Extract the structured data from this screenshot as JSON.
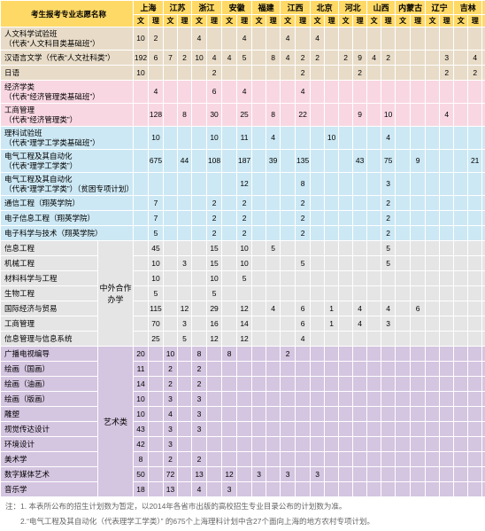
{
  "title_col": "考生报考专业志愿名称",
  "provinces": [
    "上海",
    "江苏",
    "浙江",
    "安徽",
    "福建",
    "江西",
    "北京",
    "河北",
    "山西",
    "内蒙古",
    "辽宁",
    "吉林",
    "黑龙江"
  ],
  "sub_wen": "文",
  "sub_li": "理",
  "categories": {
    "coop": "中外合作\n办学",
    "art": "艺术类"
  },
  "sections": [
    {
      "color": "tan",
      "rows": [
        {
          "name": "人文科学试验班\n（代表“人文科目类基础班”）",
          "tall": true,
          "cells": {
            "0": "10",
            "1": "2",
            "4": "4",
            "7": "4",
            "10": "4",
            "12": "4"
          }
        },
        {
          "name": "汉语言文学（代表“人文社科类”）",
          "cells": {
            "0": "192",
            "1": "6",
            "2": "7",
            "3": "2",
            "4": "10",
            "5": "4",
            "6": "4",
            "7": "5",
            "9": "8",
            "10": "4",
            "11": "2",
            "12": "2",
            "14": "2",
            "15": "9",
            "16": "4",
            "17": "2",
            "21": "3",
            "23": "4"
          }
        },
        {
          "name": "日语",
          "cells": {
            "0": "10",
            "5": "2",
            "11": "2",
            "15": "2",
            "21": "2",
            "23": "2"
          }
        }
      ]
    },
    {
      "color": "pink",
      "rows": [
        {
          "name": "经济学类\n（代表“经济管理类基础班”）",
          "tall": true,
          "cells": {
            "1": "4",
            "5": "6",
            "7": "4",
            "11": "4"
          }
        },
        {
          "name": "工商管理\n（代表“经济管理类”）",
          "tall": true,
          "cells": {
            "1": "128",
            "3": "8",
            "5": "30",
            "7": "25",
            "9": "8",
            "11": "22",
            "15": "9",
            "17": "10",
            "21": "4",
            "25": "5"
          }
        }
      ]
    },
    {
      "color": "blue",
      "rows": [
        {
          "name": "理科试验班\n（代表“理学工学类基础班”）",
          "tall": true,
          "cells": {
            "1": "10",
            "5": "10",
            "7": "11",
            "9": "4",
            "13": "10",
            "17": "4"
          }
        },
        {
          "name": "电气工程及其自动化\n（代表“理学工学类”）",
          "tall": true,
          "cells": {
            "1": "675",
            "3": "44",
            "5": "108",
            "7": "187",
            "9": "39",
            "11": "135",
            "15": "43",
            "17": "75",
            "19": "9",
            "23": "21",
            "25": "25"
          }
        },
        {
          "name": "电气工程及其自动化\n（代表“理学工学类”）（贫困专项计划）",
          "tall": true,
          "cells": {
            "7": "12",
            "11": "8",
            "17": "3"
          }
        },
        {
          "name": "通信工程（翔英学院）",
          "cells": {
            "1": "7",
            "5": "2",
            "7": "2",
            "11": "2",
            "17": "2"
          }
        },
        {
          "name": "电子信息工程（翔英学院）",
          "cells": {
            "1": "7",
            "5": "2",
            "7": "2",
            "11": "2",
            "17": "2"
          }
        },
        {
          "name": "电子科学与技术（翔英学院）",
          "cells": {
            "1": "5",
            "5": "2",
            "7": "2",
            "11": "2",
            "17": "2"
          }
        }
      ]
    },
    {
      "color": "gray",
      "cat": "coop",
      "rows": [
        {
          "name": "信息工程",
          "cells": {
            "1": "45",
            "5": "15",
            "7": "10",
            "9": "5",
            "17": "5"
          }
        },
        {
          "name": "机械工程",
          "cells": {
            "1": "10",
            "3": "3",
            "5": "15",
            "7": "10",
            "11": "5",
            "17": "5"
          }
        },
        {
          "name": "材料科学与工程",
          "cells": {
            "1": "10",
            "5": "10",
            "7": "5"
          }
        },
        {
          "name": "生物工程",
          "cells": {
            "1": "5",
            "5": "5"
          }
        },
        {
          "name": "国际经济与贸易",
          "cells": {
            "1": "115",
            "3": "12",
            "5": "29",
            "7": "12",
            "9": "4",
            "11": "6",
            "13": "1",
            "15": "4",
            "17": "4",
            "19": "6"
          }
        },
        {
          "name": "工商管理",
          "cells": {
            "1": "70",
            "3": "3",
            "5": "16",
            "7": "14",
            "11": "6",
            "13": "1",
            "15": "4",
            "17": "3"
          }
        },
        {
          "name": "信息管理与信息系统",
          "cells": {
            "1": "25",
            "3": "5",
            "5": "12",
            "7": "12",
            "11": "4"
          }
        }
      ]
    },
    {
      "color": "purp",
      "cat": "art",
      "rows": [
        {
          "name": "广播电视编导",
          "cells": {
            "0": "20",
            "2": "10",
            "4": "8",
            "6": "8",
            "10": "2"
          }
        },
        {
          "name": "绘画（国画）",
          "cells": {
            "0": "11",
            "2": "2",
            "4": "2"
          }
        },
        {
          "name": "绘画（油画）",
          "cells": {
            "0": "14",
            "2": "2",
            "4": "2"
          }
        },
        {
          "name": "绘画（版画）",
          "cells": {
            "0": "10",
            "2": "3",
            "4": "3"
          }
        },
        {
          "name": "雕塑",
          "cells": {
            "0": "10",
            "2": "4",
            "4": "3"
          }
        },
        {
          "name": "视觉传达设计",
          "cells": {
            "0": "43",
            "2": "3",
            "4": "3"
          }
        },
        {
          "name": "环境设计",
          "cells": {
            "0": "42",
            "2": "3"
          }
        },
        {
          "name": "美术学",
          "cells": {
            "0": "8",
            "2": "2",
            "4": "2"
          }
        },
        {
          "name": "数字媒体艺术",
          "cells": {
            "0": "50",
            "2": "72",
            "4": "13",
            "6": "12",
            "8": "3",
            "10": "3",
            "12": "3"
          }
        },
        {
          "name": "音乐学",
          "cells": {
            "0": "18",
            "2": "13",
            "4": "4",
            "6": "3"
          }
        }
      ]
    }
  ],
  "notes": [
    "注：1. 本表所公布的招生计划数为暂定，以2014年各省市出版的高校招生专业目录公布的计划数为准。",
    "　　2.“电气工程及其自动化（代表理学工学类）” 的675个上海理科计划中含27个面向上海的地方农村专项计划。"
  ],
  "colors": {
    "header_bg": "#ffd966",
    "tan": "#e8dcc8",
    "pink": "#f8d7e3",
    "blue": "#cce8f4",
    "gray": "#e5e5e5",
    "purp": "#d4c5e0",
    "note_text": "#666666"
  }
}
